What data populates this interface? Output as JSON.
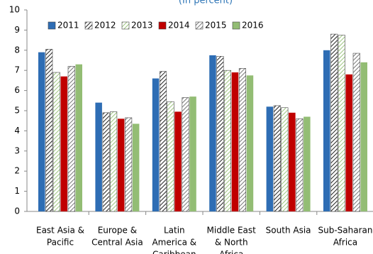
{
  "chart_data": {
    "type": "bar",
    "title": "(In percent)",
    "categories": [
      [
        "East Asia &",
        "Pacific"
      ],
      [
        "Europe &",
        "Central Asia"
      ],
      [
        "Latin",
        "America &",
        "Caribbean"
      ],
      [
        "Middle East",
        "& North",
        "Africa"
      ],
      [
        "South Asia"
      ],
      [
        "Sub-Saharan",
        "Africa"
      ]
    ],
    "series": [
      {
        "name": "2011",
        "color": "#2e6db4",
        "pattern": "solid",
        "values": [
          7.9,
          5.4,
          6.6,
          7.75,
          5.2,
          8.0
        ]
      },
      {
        "name": "2012",
        "color": "#222222",
        "pattern": "hatch",
        "values": [
          8.05,
          4.9,
          6.95,
          7.7,
          5.25,
          8.8
        ]
      },
      {
        "name": "2013",
        "color": "#9cc47e",
        "pattern": "hatch",
        "values": [
          6.9,
          4.95,
          5.45,
          7.0,
          5.15,
          8.75
        ]
      },
      {
        "name": "2014",
        "color": "#c00000",
        "pattern": "solid",
        "values": [
          6.7,
          4.6,
          4.95,
          6.9,
          4.9,
          6.8
        ]
      },
      {
        "name": "2015",
        "color": "#777777",
        "pattern": "hatch",
        "values": [
          7.2,
          4.65,
          5.65,
          7.1,
          4.6,
          7.85
        ]
      },
      {
        "name": "2016",
        "color": "#93bd74",
        "pattern": "solid",
        "values": [
          7.3,
          4.35,
          5.7,
          6.75,
          4.7,
          7.4
        ]
      }
    ],
    "ylim": [
      0,
      10
    ],
    "yticks": [
      0,
      1,
      2,
      3,
      4,
      5,
      6,
      7,
      8,
      9,
      10
    ],
    "grid": false
  }
}
